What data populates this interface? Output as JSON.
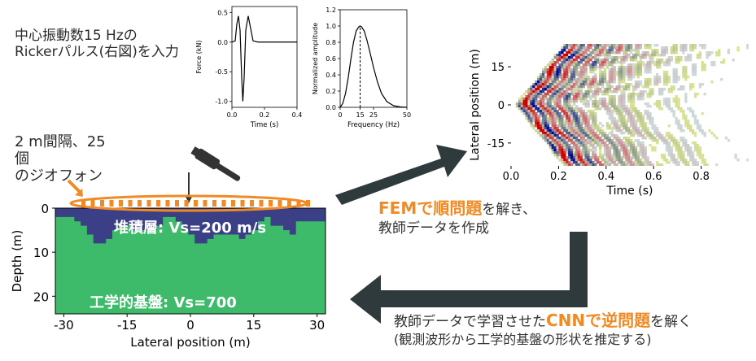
{
  "input": {
    "line1": "中心振動数15 Hzの",
    "line2": "Rickerパルス(右図)を入力"
  },
  "geophones": {
    "line1": "2 m間隔、25",
    "line2": "個",
    "line3": "のジオフォン"
  },
  "step1": {
    "highlight": "FEMで順問題",
    "text": "を解き、",
    "line2": "教師データを作成"
  },
  "step2": {
    "pre": "教師データで学習させた",
    "highlight": "CNNで逆問題",
    "post": "を解く",
    "line2": "(観測波形から工学的基盤の形状を推定する)"
  },
  "chart_data": [
    {
      "type": "line",
      "xlabel": "Time (s)",
      "ylabel": "Force (kN)",
      "xlim": [
        0,
        0.4
      ],
      "ylim": [
        -1.1,
        0.6
      ],
      "xticks": [
        "0.0",
        "0.2",
        "0.4"
      ],
      "yticks": [
        "0.5",
        "0.0",
        "-0.5",
        "-1.0"
      ],
      "x": [
        0,
        0.02,
        0.03,
        0.04,
        0.05,
        0.06,
        0.067,
        0.075,
        0.085,
        0.1,
        0.11,
        0.13,
        0.16,
        0.2,
        0.3,
        0.4
      ],
      "y": [
        0,
        0.02,
        0.3,
        0.44,
        0.2,
        -0.6,
        -1.0,
        -0.6,
        0.2,
        0.44,
        0.3,
        0.02,
        0,
        0,
        0,
        0
      ]
    },
    {
      "type": "line",
      "xlabel": "Frequency (Hz)",
      "ylabel": "Normalized amplitude",
      "xlim": [
        0,
        50
      ],
      "ylim": [
        0,
        1.2
      ],
      "xticks": [
        "0",
        "15",
        "25",
        "50"
      ],
      "yticks": [
        "0.0",
        "0.2",
        "0.4",
        "0.6",
        "0.8",
        "1.0",
        "1.2"
      ],
      "x": [
        0,
        2,
        4,
        6,
        8,
        10,
        12,
        14,
        15,
        16,
        18,
        20,
        22,
        25,
        28,
        31,
        35,
        40,
        45,
        50
      ],
      "y": [
        0,
        0.05,
        0.17,
        0.36,
        0.59,
        0.8,
        0.94,
        0.99,
        1.0,
        0.99,
        0.94,
        0.83,
        0.7,
        0.49,
        0.31,
        0.17,
        0.07,
        0.02,
        0.005,
        0
      ],
      "marker_x": 15
    },
    {
      "type": "heatmap",
      "xlabel": "Time (s)",
      "ylabel": "Lateral position (m)",
      "xlim": [
        0,
        1.0
      ],
      "ylim": [
        -24,
        24
      ],
      "xticks": [
        "0.0",
        "0.2",
        "0.4",
        "0.6",
        "0.8"
      ],
      "yticks": [
        "15",
        "0",
        "-15"
      ]
    },
    {
      "type": "heatmap",
      "xlabel": "Lateral position (m)",
      "ylabel": "Depth (m)",
      "xlim": [
        -32,
        32
      ],
      "ylim": [
        24,
        0
      ],
      "xticks": [
        "-30",
        "-15",
        "0",
        "15",
        "30"
      ],
      "yticks": [
        "0",
        "10",
        "20"
      ],
      "labels": {
        "sediment": "堆積層: Vs=200 m/s",
        "bedrock": "工学的基盤: Vs=700"
      },
      "colors": {
        "sediment": "#3b3f86",
        "bedrock": "#3dbb6a"
      }
    }
  ]
}
